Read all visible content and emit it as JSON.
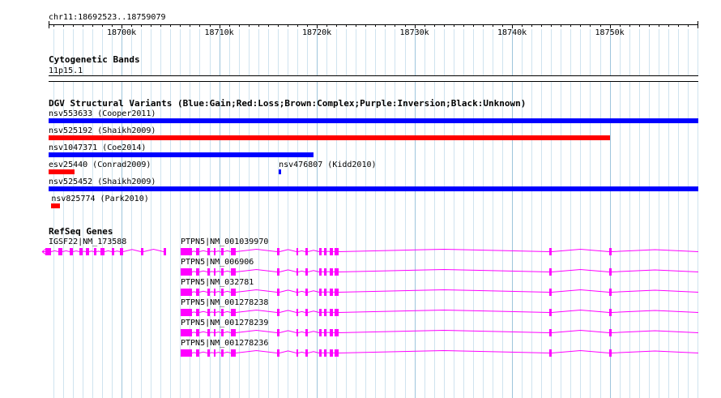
{
  "ruler": {
    "region_label": "chr11:18692523..18759079",
    "start": 18692523,
    "end": 18759079,
    "ticks": [
      {
        "pos": 18700000,
        "label": "18700k"
      },
      {
        "pos": 18710000,
        "label": "18710k"
      },
      {
        "pos": 18720000,
        "label": "18720k"
      },
      {
        "pos": 18730000,
        "label": "18730k"
      },
      {
        "pos": 18740000,
        "label": "18740k"
      },
      {
        "pos": 18750000,
        "label": "18750k"
      }
    ]
  },
  "cytobands": {
    "title": "Cytogenetic Bands",
    "band_label": "11p15.1"
  },
  "dgv": {
    "title": "DGV Structural Variants (Blue:Gain;Red:Loss;Brown:Complex;Purple:Inversion;Black:Unknown)",
    "colors": {
      "gain": "#0000ff",
      "loss": "#ff0000"
    },
    "variants": [
      {
        "label": "nsv553633 (Cooper2011)",
        "type": "gain",
        "start": 18692523,
        "end": 18759079
      },
      {
        "label": "nsv525192 (Shaikh2009)",
        "type": "loss",
        "start": 18692523,
        "end": 18750000
      },
      {
        "label": "nsv1047371 (Coe2014)",
        "type": "gain",
        "start": 18692523,
        "end": 18719700
      },
      {
        "label": "esv25440 (Conrad2009)",
        "type": "loss",
        "start": 18692523,
        "end": 18695200
      },
      {
        "label": "nsv476807 (Kidd2010)",
        "type": "gain",
        "start": 18716100,
        "end": 18716300
      },
      {
        "label": "nsv525452 (Shaikh2009)",
        "type": "gain",
        "start": 18692523,
        "end": 18759079
      },
      {
        "label": "nsv825774 (Park2010)",
        "type": "loss",
        "start": 18692800,
        "end": 18693700
      }
    ]
  },
  "refseq": {
    "title": "RefSeq Genes",
    "color": "#ff00ff",
    "genes": [
      {
        "label": "IGSF22|NM_173588",
        "strand": "-",
        "start": 18692300,
        "end": 18704000
      },
      {
        "label": "PTPN5|NM_001039970",
        "strand": "-",
        "start": 18706100,
        "end": 18759079
      },
      {
        "label": "PTPN5|NM_006906",
        "strand": "-",
        "start": 18706100,
        "end": 18759079
      },
      {
        "label": "PTPN5|NM_032781",
        "strand": "-",
        "start": 18706100,
        "end": 18759079
      },
      {
        "label": "PTPN5|NM_001278238",
        "strand": "-",
        "start": 18706100,
        "end": 18759079
      },
      {
        "label": "PTPN5|NM_001278239",
        "strand": "-",
        "start": 18706100,
        "end": 18759079
      },
      {
        "label": "PTPN5|NM_001278236",
        "strand": "-",
        "start": 18706100,
        "end": 18759079
      }
    ]
  }
}
